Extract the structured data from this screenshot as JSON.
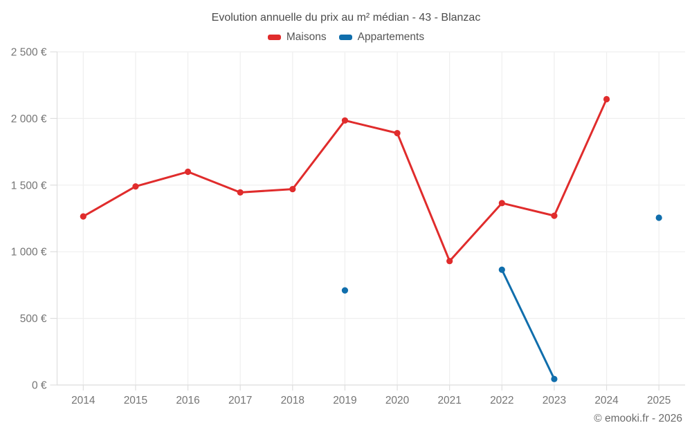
{
  "chart": {
    "title": "Evolution annuelle du prix au m² médian - 43 - Blanzac",
    "footer": "© emooki.fr - 2026",
    "colors": {
      "grid": "#efefef",
      "axis": "#dedede",
      "tick_label": "#757575",
      "title_text": "#4c4c4c",
      "maisons_red": "#e02c2c",
      "appartements_blue": "#106eac"
    }
  },
  "chart_data": {
    "type": "line",
    "title": "Evolution annuelle du prix au m² médian - 43 - Blanzac",
    "xlabel": "",
    "ylabel": "",
    "x_labels": [
      "2014",
      "2015",
      "2016",
      "2017",
      "2018",
      "2019",
      "2020",
      "2021",
      "2022",
      "2023",
      "2024",
      "2025"
    ],
    "series": [
      {
        "name": "Maisons",
        "color": "#e02c2c",
        "values": [
          1265,
          1490,
          1600,
          1445,
          1470,
          1985,
          1890,
          930,
          1365,
          1270,
          2145,
          null
        ]
      },
      {
        "name": "Appartements",
        "color": "#106eac",
        "values": [
          null,
          null,
          null,
          null,
          null,
          710,
          null,
          null,
          865,
          45,
          null,
          1255
        ]
      }
    ],
    "ylim": [
      0,
      2500
    ],
    "ytick_values": [
      0,
      500,
      1000,
      1500,
      2000,
      2500
    ],
    "ytick_labels": [
      "0 €",
      "500 €",
      "1 000 €",
      "1 500 €",
      "2 000 €",
      "2 500 €"
    ],
    "grid": true,
    "legend_position": "top",
    "gaps_not_connected": true
  }
}
